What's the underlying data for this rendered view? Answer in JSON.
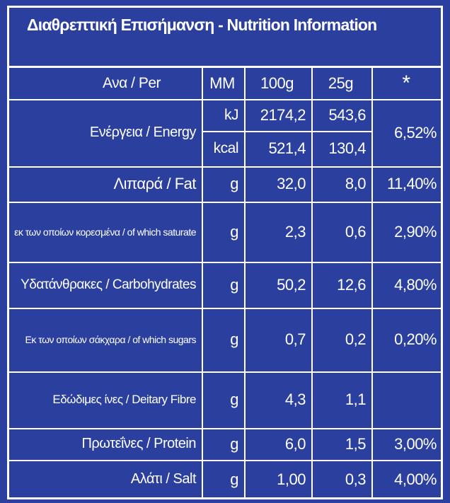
{
  "title": "Διαθρεπτική Επισήμανση - Nutrition Information",
  "table": {
    "header": [
      "Ανα / Per",
      "MM",
      "100g",
      "25g",
      "*"
    ],
    "rows": [
      {
        "label": "Ενέργεια / Energy",
        "units": [
          "kJ",
          "kcal"
        ],
        "per_100g": [
          "2174,2",
          "521,4"
        ],
        "per_25g": [
          "543,6",
          "130,4"
        ],
        "percent": "6,52%"
      },
      {
        "label": "Λιπαρά / Fat",
        "unit": "g",
        "per_100g": "32,0",
        "per_25g": "8,0",
        "percent": "11,40%"
      },
      {
        "label": "εκ των οποίων κορεσμένα / of which saturate",
        "unit": "g",
        "per_100g": "2,3",
        "per_25g": "0,6",
        "percent": "2,90%"
      },
      {
        "label": "Υδατάνθρακες / Carbohydrates",
        "unit": "g",
        "per_100g": "50,2",
        "per_25g": "12,6",
        "percent": "4,80%"
      },
      {
        "label": "Εκ των οποίων σάκχαρα / of which sugars",
        "unit": "g",
        "per_100g": "0,7",
        "per_25g": "0,2",
        "percent": "0,20%"
      },
      {
        "label": "Εδώδιμες ίνες / Deitary Fibre",
        "unit": "g",
        "per_100g": "4,3",
        "per_25g": "1,1"
      },
      {
        "label": "Πρωτεΐνες / Protein",
        "unit": "g",
        "per_100g": "6,0",
        "per_25g": "1,5",
        "percent": "3,00%"
      },
      {
        "label": "Αλάτι / Salt",
        "unit": "g",
        "per_100g": "1,00",
        "per_25g": "0,3",
        "percent": "4,00%"
      }
    ]
  }
}
